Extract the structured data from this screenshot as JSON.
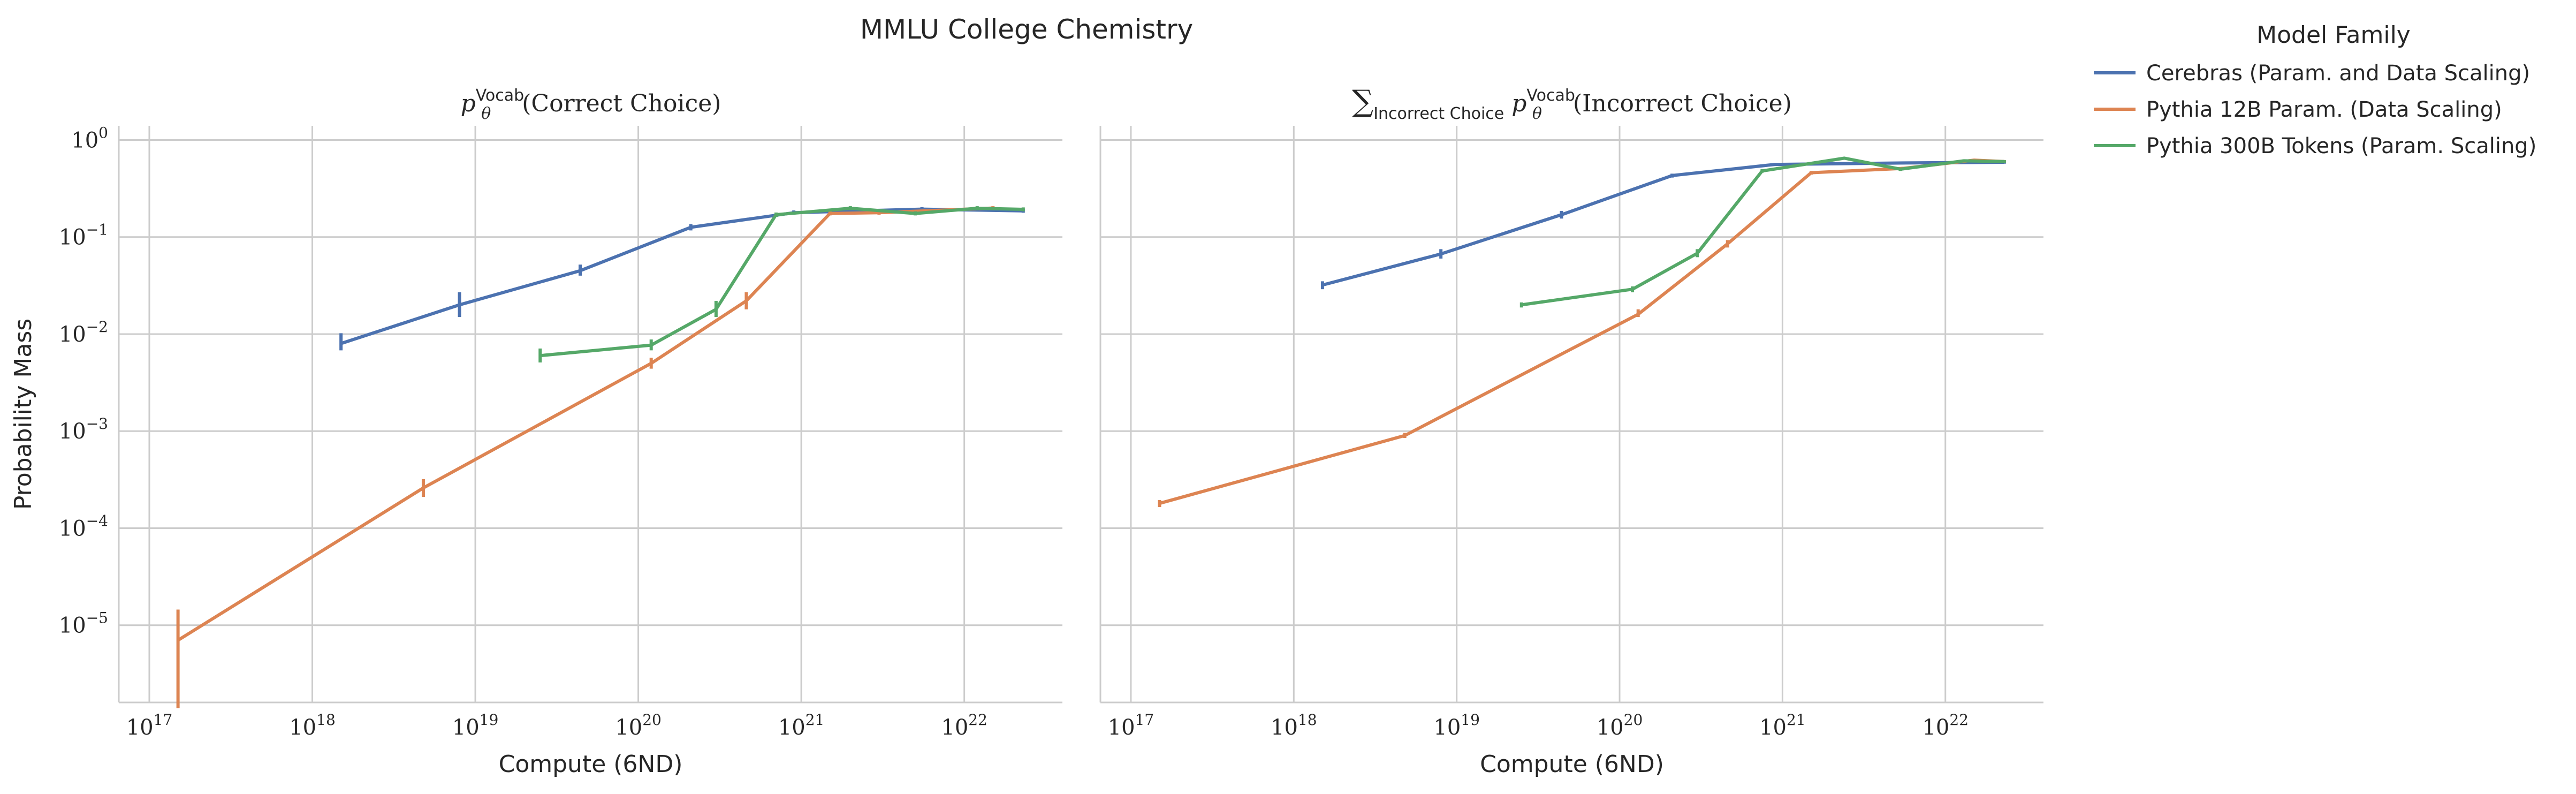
{
  "figure": {
    "title": "MMLU College Chemistry"
  },
  "legend": {
    "title": "Model Family",
    "placement": "upper-right outside",
    "entries": [
      {
        "label": "Cerebras (Param. and Data Scaling)",
        "color": "#4c72b0"
      },
      {
        "label": "Pythia 12B Param. (Data Scaling)",
        "color": "#dd8452"
      },
      {
        "label": "Pythia 300B Tokens (Param. Scaling)",
        "color": "#55a868"
      }
    ]
  },
  "chart_data": [
    {
      "type": "line",
      "title": {
        "base": "p",
        "sup": "Vocab",
        "sub": "θ",
        "rest": "(Correct Choice)"
      },
      "xlabel": "Compute (6ND)",
      "ylabel": "Probability Mass",
      "xscale": "log",
      "yscale": "log",
      "xlim": [
        6.5e+16,
        4e+22
      ],
      "ylim": [
        1.6e-06,
        1.4
      ],
      "grid": true,
      "xticks": [
        1e+17,
        1e+18,
        1e+19,
        1e+20,
        1e+21,
        1e+22
      ],
      "xtick_labels": [
        {
          "b": "10",
          "e": "17"
        },
        {
          "b": "10",
          "e": "18"
        },
        {
          "b": "10",
          "e": "19"
        },
        {
          "b": "10",
          "e": "20"
        },
        {
          "b": "10",
          "e": "21"
        },
        {
          "b": "10",
          "e": "22"
        }
      ],
      "yticks": [
        1e-05,
        0.0001,
        0.001,
        0.01,
        0.1,
        1
      ],
      "ytick_labels": [
        {
          "b": "10",
          "e": "−5"
        },
        {
          "b": "10",
          "e": "−4"
        },
        {
          "b": "10",
          "e": "−3"
        },
        {
          "b": "10",
          "e": "−2"
        },
        {
          "b": "10",
          "e": "−1"
        },
        {
          "b": "10",
          "e": "0"
        }
      ],
      "series": [
        {
          "name": "Cerebras (Param. and Data Scaling)",
          "color": "#4c72b0",
          "points": [
            {
              "x": 1.5e+18,
              "y": 0.008,
              "lo": 0.0068,
              "hi": 0.0102
            },
            {
              "x": 8e+18,
              "y": 0.02,
              "lo": 0.015,
              "hi": 0.027
            },
            {
              "x": 4.4e+19,
              "y": 0.045,
              "lo": 0.04,
              "hi": 0.052
            },
            {
              "x": 2.1e+20,
              "y": 0.126,
              "lo": 0.117,
              "hi": 0.136
            },
            {
              "x": 9e+20,
              "y": 0.178,
              "lo": 0.17,
              "hi": 0.188
            },
            {
              "x": 5.5e+21,
              "y": 0.194,
              "lo": 0.186,
              "hi": 0.203
            },
            {
              "x": 2.3e+22,
              "y": 0.186,
              "lo": 0.178,
              "hi": 0.195
            }
          ]
        },
        {
          "name": "Pythia 12B Param. (Data Scaling)",
          "color": "#dd8452",
          "points": [
            {
              "x": 1.5e+17,
              "y": 7e-06,
              "lo": 1.4e-06,
              "hi": 1.45e-05
            },
            {
              "x": 4.8e+18,
              "y": 0.00026,
              "lo": 0.00021,
              "hi": 0.00032
            },
            {
              "x": 1.2e+20,
              "y": 0.005,
              "lo": 0.0044,
              "hi": 0.0057
            },
            {
              "x": 4.6e+20,
              "y": 0.022,
              "lo": 0.018,
              "hi": 0.027
            },
            {
              "x": 1.5e+21,
              "y": 0.175,
              "lo": 0.167,
              "hi": 0.184
            },
            {
              "x": 3e+21,
              "y": 0.178,
              "lo": 0.17,
              "hi": 0.187
            },
            {
              "x": 1.5e+22,
              "y": 0.199,
              "lo": 0.19,
              "hi": 0.208
            }
          ]
        },
        {
          "name": "Pythia 300B Tokens (Param. Scaling)",
          "color": "#55a868",
          "points": [
            {
              "x": 2.5e+19,
              "y": 0.006,
              "lo": 0.0051,
              "hi": 0.0071
            },
            {
              "x": 1.2e+20,
              "y": 0.0077,
              "lo": 0.0068,
              "hi": 0.0088
            },
            {
              "x": 3e+20,
              "y": 0.018,
              "lo": 0.015,
              "hi": 0.022
            },
            {
              "x": 7e+20,
              "y": 0.17,
              "lo": 0.161,
              "hi": 0.179
            },
            {
              "x": 2e+21,
              "y": 0.198,
              "lo": 0.189,
              "hi": 0.208
            },
            {
              "x": 5e+21,
              "y": 0.175,
              "lo": 0.167,
              "hi": 0.184
            },
            {
              "x": 1.2e+22,
              "y": 0.198,
              "lo": 0.189,
              "hi": 0.208
            },
            {
              "x": 2.3e+22,
              "y": 0.193,
              "lo": 0.184,
              "hi": 0.202
            }
          ]
        }
      ]
    },
    {
      "type": "line",
      "title": {
        "prefix": "∑",
        "prefix_sub": "Incorrect Choice",
        "base": "p",
        "sup": "Vocab",
        "sub": "θ",
        "rest": "(Incorrect Choice)"
      },
      "xlabel": "Compute (6ND)",
      "ylabel": "",
      "xscale": "log",
      "yscale": "log",
      "xlim": [
        6.5e+16,
        4e+22
      ],
      "ylim": [
        1.6e-06,
        1.4
      ],
      "grid": true,
      "xticks": [
        1e+17,
        1e+18,
        1e+19,
        1e+20,
        1e+21,
        1e+22
      ],
      "xtick_labels": [
        {
          "b": "10",
          "e": "17"
        },
        {
          "b": "10",
          "e": "18"
        },
        {
          "b": "10",
          "e": "19"
        },
        {
          "b": "10",
          "e": "20"
        },
        {
          "b": "10",
          "e": "21"
        },
        {
          "b": "10",
          "e": "22"
        }
      ],
      "yticks": [
        1e-05,
        0.0001,
        0.001,
        0.01,
        0.1,
        1
      ],
      "ytick_labels": [],
      "series": [
        {
          "name": "Cerebras (Param. and Data Scaling)",
          "color": "#4c72b0",
          "points": [
            {
              "x": 1.5e+18,
              "y": 0.032,
              "lo": 0.029,
              "hi": 0.035
            },
            {
              "x": 8e+18,
              "y": 0.067,
              "lo": 0.06,
              "hi": 0.075
            },
            {
              "x": 4.4e+19,
              "y": 0.17,
              "lo": 0.155,
              "hi": 0.186
            },
            {
              "x": 2.1e+20,
              "y": 0.43,
              "lo": 0.41,
              "hi": 0.45
            },
            {
              "x": 9e+20,
              "y": 0.56,
              "lo": 0.54,
              "hi": 0.58
            },
            {
              "x": 5.5e+21,
              "y": 0.58,
              "lo": 0.56,
              "hi": 0.6
            },
            {
              "x": 2.3e+22,
              "y": 0.59,
              "lo": 0.57,
              "hi": 0.61
            }
          ]
        },
        {
          "name": "Pythia 12B Param. (Data Scaling)",
          "color": "#dd8452",
          "points": [
            {
              "x": 1.5e+17,
              "y": 0.00018,
              "lo": 0.000165,
              "hi": 0.000195
            },
            {
              "x": 4.8e+18,
              "y": 0.0009,
              "lo": 0.00085,
              "hi": 0.00096
            },
            {
              "x": 1.3e+20,
              "y": 0.016,
              "lo": 0.015,
              "hi": 0.018
            },
            {
              "x": 4.6e+20,
              "y": 0.085,
              "lo": 0.078,
              "hi": 0.093
            },
            {
              "x": 1.5e+21,
              "y": 0.46,
              "lo": 0.44,
              "hi": 0.48
            },
            {
              "x": 5.5e+21,
              "y": 0.51,
              "lo": 0.49,
              "hi": 0.53
            },
            {
              "x": 1.5e+22,
              "y": 0.62,
              "lo": 0.6,
              "hi": 0.64
            },
            {
              "x": 2.3e+22,
              "y": 0.6,
              "lo": 0.58,
              "hi": 0.62
            }
          ]
        },
        {
          "name": "Pythia 300B Tokens (Param. Scaling)",
          "color": "#55a868",
          "points": [
            {
              "x": 2.5e+19,
              "y": 0.02,
              "lo": 0.0188,
              "hi": 0.0212
            },
            {
              "x": 1.2e+20,
              "y": 0.029,
              "lo": 0.027,
              "hi": 0.031
            },
            {
              "x": 3e+20,
              "y": 0.068,
              "lo": 0.062,
              "hi": 0.075
            },
            {
              "x": 7.5e+20,
              "y": 0.48,
              "lo": 0.46,
              "hi": 0.5
            },
            {
              "x": 2.4e+21,
              "y": 0.65,
              "lo": 0.63,
              "hi": 0.67
            },
            {
              "x": 5.3e+21,
              "y": 0.5,
              "lo": 0.48,
              "hi": 0.52
            },
            {
              "x": 1.3e+22,
              "y": 0.61,
              "lo": 0.59,
              "hi": 0.63
            },
            {
              "x": 2.3e+22,
              "y": 0.6,
              "lo": 0.58,
              "hi": 0.62
            }
          ]
        }
      ]
    }
  ]
}
